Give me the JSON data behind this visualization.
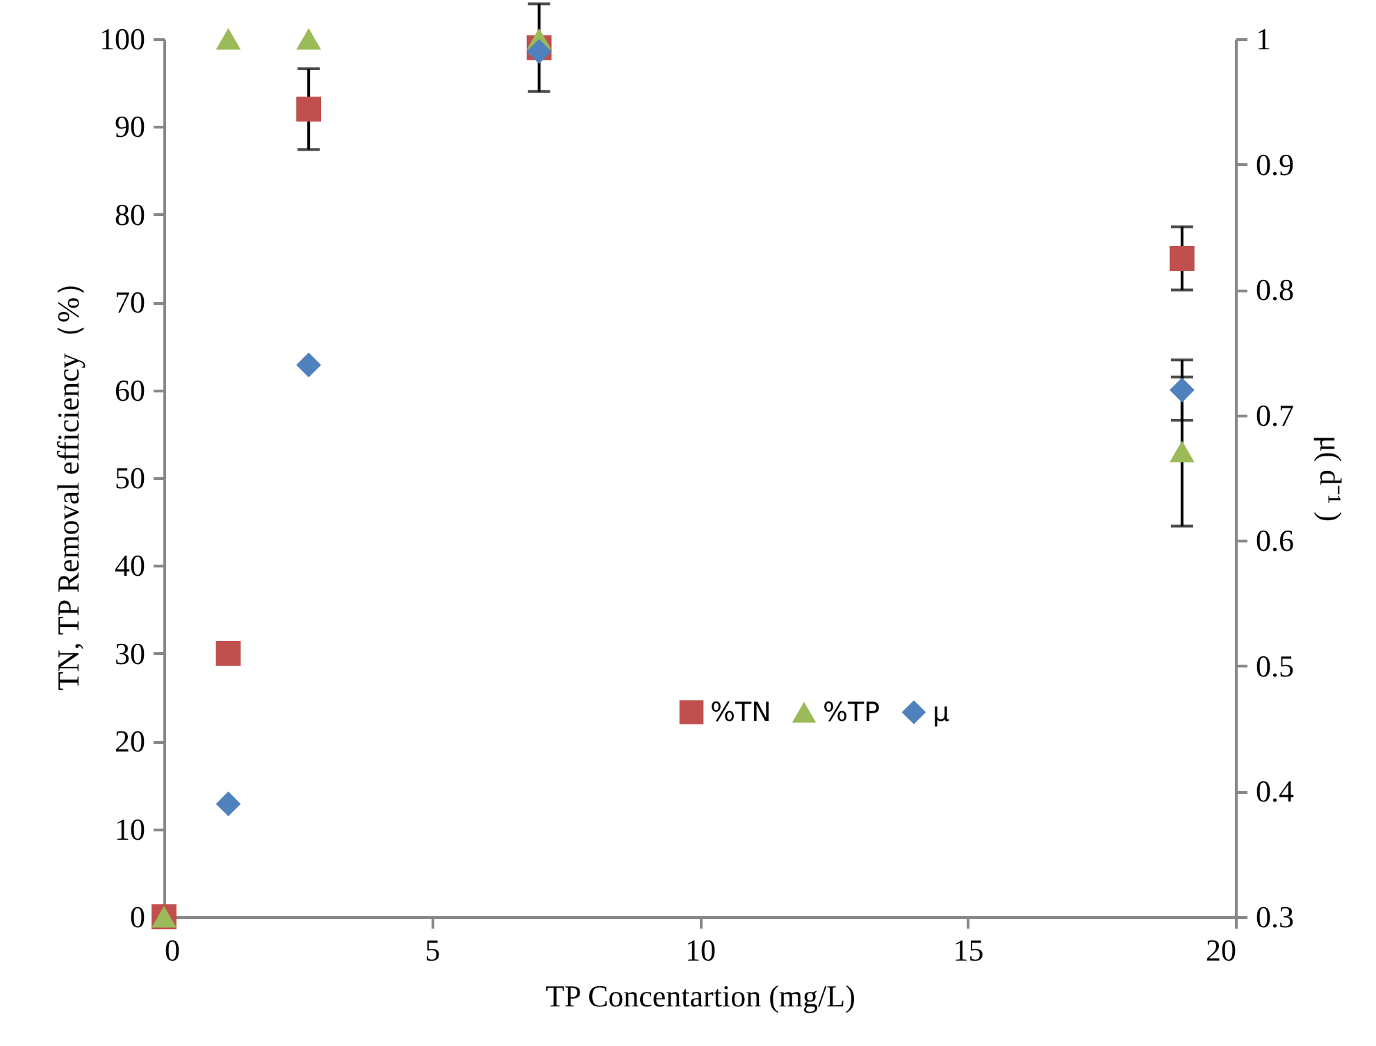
{
  "chart_data": {
    "type": "scatter",
    "xlabel": "TP Concentartion (mg/L)",
    "ylabel": "TN, TP Removal efficiency（%）",
    "y2label": "μ( d⁻¹ )",
    "x": [
      0,
      1.2,
      2.7,
      7,
      19
    ],
    "xlim": [
      0,
      20
    ],
    "xticks": [
      0,
      5,
      10,
      15,
      20
    ],
    "ylim": [
      0,
      100
    ],
    "yticks": [
      0,
      10,
      20,
      30,
      40,
      50,
      60,
      70,
      80,
      90,
      100
    ],
    "y2lim": [
      0.3,
      1
    ],
    "y2ticks": [
      0.3,
      0.4,
      0.5,
      0.6,
      0.7,
      0.8,
      0.9,
      1
    ],
    "grid": false,
    "legend": "right",
    "series": [
      {
        "name": "%TN",
        "color": "#c0504d",
        "marker": "square",
        "values": [
          0,
          30,
          92,
          99,
          75
        ],
        "errors": [
          null,
          null,
          4.6,
          5,
          3.6
        ]
      },
      {
        "name": "%TP",
        "color": "#9bbb59",
        "marker": "triangle",
        "values": [
          0,
          100,
          100,
          100,
          53
        ],
        "errors": [
          null,
          null,
          null,
          null,
          8.5
        ]
      },
      {
        "name": "μ",
        "color": "#4f81bd",
        "marker": "diamond",
        "axis": "y2",
        "values": [
          null,
          0.39,
          0.74,
          0.99,
          0.72
        ],
        "errors": [
          null,
          null,
          null,
          null,
          0.024
        ]
      }
    ]
  }
}
